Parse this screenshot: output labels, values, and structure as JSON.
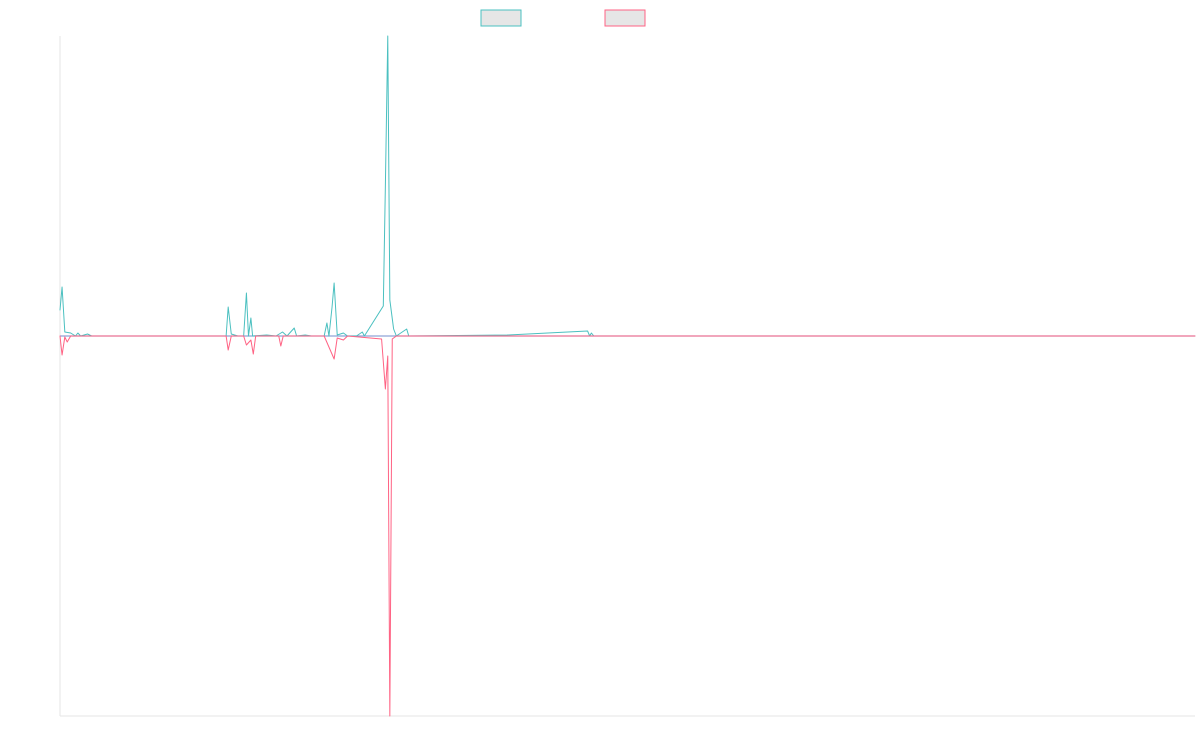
{
  "chart_data": {
    "type": "line",
    "title": "",
    "xlabel": "",
    "ylabel": "",
    "grid": false,
    "legend_position": "top",
    "x_range": [
      0,
      330
    ],
    "ylim": [
      -38,
      30
    ],
    "colors": {
      "background": "#ffffff",
      "axis": "#e5e5e5",
      "baseline": "#8fa3d8",
      "legend_fill": "#e6e6e6"
    },
    "series": [
      {
        "color": "#4bc0c0",
        "points": [
          [
            0,
            2.6
          ],
          [
            0.6,
            4.9
          ],
          [
            1.4,
            0.4
          ],
          [
            3.1,
            0.3
          ],
          [
            4.5,
            0.0
          ],
          [
            5.2,
            0.3
          ],
          [
            6.0,
            0.0
          ],
          [
            8.0,
            0.2
          ],
          [
            9.2,
            0.0
          ],
          [
            48.3,
            0.0
          ],
          [
            48.9,
            2.9
          ],
          [
            49.8,
            0.2
          ],
          [
            51.7,
            0.0
          ],
          [
            53.4,
            0.0
          ],
          [
            54.2,
            4.3
          ],
          [
            54.8,
            0.0
          ],
          [
            55.5,
            1.8
          ],
          [
            56.0,
            0.0
          ],
          [
            60.1,
            0.1
          ],
          [
            62.8,
            0.0
          ],
          [
            64.7,
            0.4
          ],
          [
            66.0,
            0.0
          ],
          [
            68.1,
            0.8
          ],
          [
            68.8,
            0.0
          ],
          [
            71.3,
            0.1
          ],
          [
            73.1,
            0.0
          ],
          [
            76.8,
            0.0
          ],
          [
            77.6,
            1.3
          ],
          [
            78.2,
            0.0
          ],
          [
            79.1,
            2.9
          ],
          [
            79.7,
            5.3
          ],
          [
            80.6,
            0.1
          ],
          [
            82.4,
            0.3
          ],
          [
            83.6,
            0.0
          ],
          [
            86.2,
            0.0
          ],
          [
            87.9,
            0.4
          ],
          [
            88.5,
            0.0
          ],
          [
            94.0,
            3.0
          ],
          [
            94.6,
            15.0
          ],
          [
            95.3,
            30.0
          ],
          [
            95.9,
            3.6
          ],
          [
            97.0,
            0.7
          ],
          [
            97.8,
            0.0
          ],
          [
            100.8,
            0.7
          ],
          [
            101.4,
            0.0
          ],
          [
            130.0,
            0.1
          ],
          [
            153.4,
            0.5
          ],
          [
            154.0,
            0.0
          ],
          [
            154.5,
            0.3
          ],
          [
            155.2,
            0.0
          ],
          [
            330,
            0.0
          ]
        ]
      },
      {
        "color": "#ff6384",
        "points": [
          [
            0,
            0.0
          ],
          [
            0.6,
            -1.9
          ],
          [
            1.4,
            -0.1
          ],
          [
            2.1,
            -0.6
          ],
          [
            3.1,
            0.0
          ],
          [
            48.3,
            0.0
          ],
          [
            48.9,
            -1.4
          ],
          [
            49.8,
            0.0
          ],
          [
            53.4,
            0.0
          ],
          [
            54.2,
            -0.9
          ],
          [
            55.5,
            -0.4
          ],
          [
            56.2,
            -1.8
          ],
          [
            56.9,
            0.0
          ],
          [
            63.6,
            0.0
          ],
          [
            64.2,
            -1.0
          ],
          [
            64.9,
            0.0
          ],
          [
            76.8,
            0.0
          ],
          [
            79.7,
            -2.3
          ],
          [
            80.6,
            -0.2
          ],
          [
            82.4,
            -0.4
          ],
          [
            83.6,
            0.0
          ],
          [
            93.5,
            -0.3
          ],
          [
            94.6,
            -5.3
          ],
          [
            95.3,
            -2.0
          ],
          [
            95.9,
            -38.0
          ],
          [
            96.6,
            -0.3
          ],
          [
            97.8,
            0.0
          ],
          [
            330,
            0.0
          ]
        ]
      }
    ]
  }
}
